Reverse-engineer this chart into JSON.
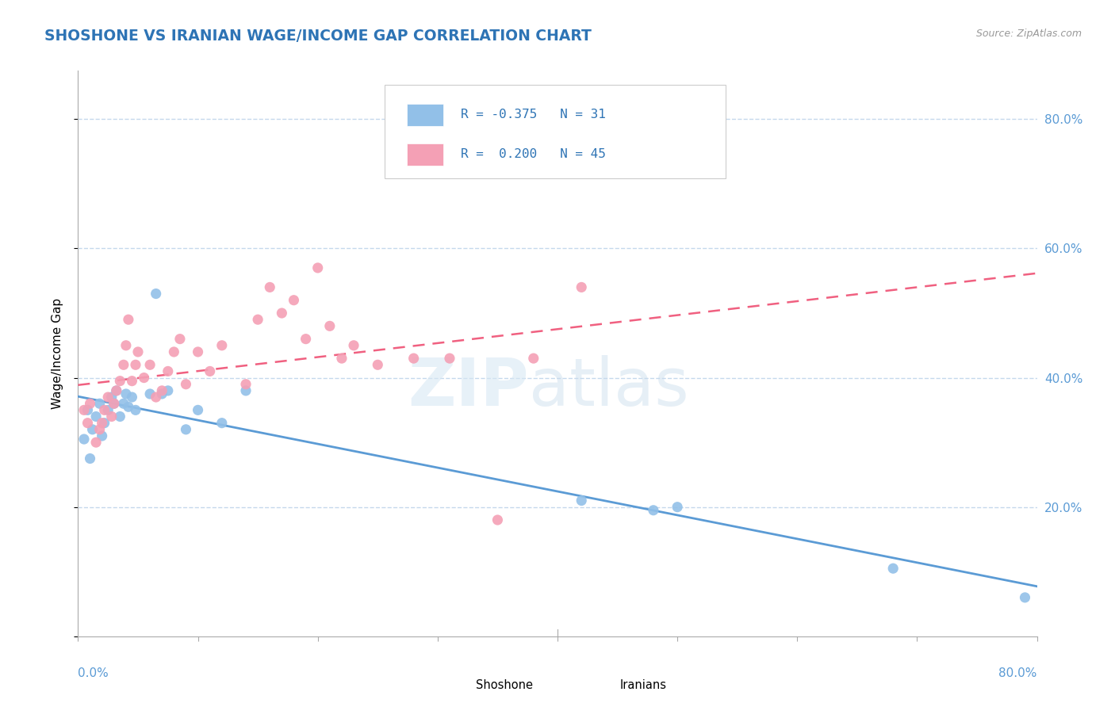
{
  "title": "SHOSHONE VS IRANIAN WAGE/INCOME GAP CORRELATION CHART",
  "source": "Source: ZipAtlas.com",
  "ylabel": "Wage/Income Gap",
  "legend_label1": "Shoshone",
  "legend_label2": "Iranians",
  "r1": -0.375,
  "n1": 31,
  "r2": 0.2,
  "n2": 45,
  "shoshone_color": "#92C0E8",
  "iranian_color": "#F4A0B5",
  "shoshone_line_color": "#5B9BD5",
  "iranian_line_color": "#F06080",
  "iranian_line_dash": [
    6,
    4
  ],
  "background_color": "#ffffff",
  "grid_color": "#C5D8EC",
  "title_color": "#2E74B5",
  "tick_color": "#5B9BD5",
  "shoshone_x": [
    0.005,
    0.008,
    0.01,
    0.012,
    0.015,
    0.018,
    0.02,
    0.022,
    0.025,
    0.028,
    0.03,
    0.032,
    0.035,
    0.038,
    0.04,
    0.042,
    0.045,
    0.048,
    0.06,
    0.065,
    0.07,
    0.075,
    0.09,
    0.1,
    0.12,
    0.14,
    0.42,
    0.48,
    0.5,
    0.68,
    0.79
  ],
  "shoshone_y": [
    0.305,
    0.35,
    0.275,
    0.32,
    0.34,
    0.36,
    0.31,
    0.33,
    0.35,
    0.37,
    0.36,
    0.38,
    0.34,
    0.36,
    0.375,
    0.355,
    0.37,
    0.35,
    0.375,
    0.53,
    0.375,
    0.38,
    0.32,
    0.35,
    0.33,
    0.38,
    0.21,
    0.195,
    0.2,
    0.105,
    0.06
  ],
  "iranian_x": [
    0.005,
    0.008,
    0.01,
    0.015,
    0.018,
    0.02,
    0.022,
    0.025,
    0.028,
    0.03,
    0.032,
    0.035,
    0.038,
    0.04,
    0.042,
    0.045,
    0.048,
    0.05,
    0.055,
    0.06,
    0.065,
    0.07,
    0.075,
    0.08,
    0.085,
    0.09,
    0.1,
    0.11,
    0.12,
    0.14,
    0.15,
    0.16,
    0.17,
    0.18,
    0.19,
    0.2,
    0.21,
    0.22,
    0.23,
    0.25,
    0.28,
    0.31,
    0.35,
    0.38,
    0.42
  ],
  "iranian_y": [
    0.35,
    0.33,
    0.36,
    0.3,
    0.32,
    0.33,
    0.35,
    0.37,
    0.34,
    0.36,
    0.38,
    0.395,
    0.42,
    0.45,
    0.49,
    0.395,
    0.42,
    0.44,
    0.4,
    0.42,
    0.37,
    0.38,
    0.41,
    0.44,
    0.46,
    0.39,
    0.44,
    0.41,
    0.45,
    0.39,
    0.49,
    0.54,
    0.5,
    0.52,
    0.46,
    0.57,
    0.48,
    0.43,
    0.45,
    0.42,
    0.43,
    0.43,
    0.18,
    0.43,
    0.54
  ],
  "xlim": [
    0.0,
    0.8
  ],
  "ylim": [
    0.0,
    0.875
  ],
  "ytick_positions": [
    0.0,
    0.2,
    0.4,
    0.6,
    0.8
  ],
  "ytick_labels": [
    "",
    "20.0%",
    "40.0%",
    "60.0%",
    "80.0%"
  ],
  "figsize": [
    14.06,
    8.92
  ],
  "dpi": 100
}
